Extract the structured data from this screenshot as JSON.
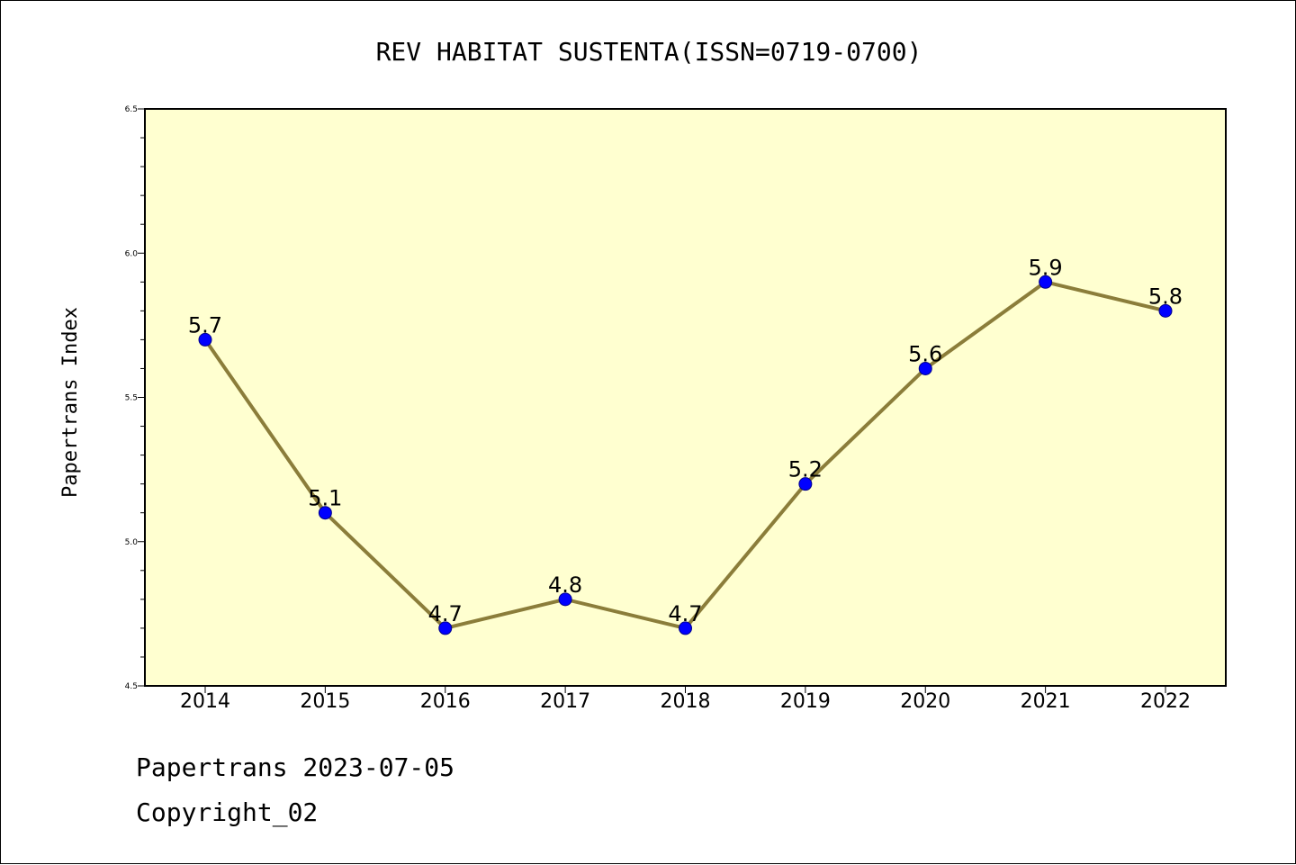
{
  "chart_data": {
    "type": "line",
    "title": "REV HABITAT SUSTENTA(ISSN=0719-0700)",
    "xlabel": "",
    "ylabel": "Papertrans Index",
    "categories": [
      "2014",
      "2015",
      "2016",
      "2017",
      "2018",
      "2019",
      "2020",
      "2021",
      "2022"
    ],
    "series": [
      {
        "values": [
          5.7,
          5.1,
          4.7,
          4.8,
          4.7,
          5.2,
          5.6,
          5.9,
          5.8
        ]
      }
    ],
    "data_labels": [
      "5.7",
      "5.1",
      "4.7",
      "4.8",
      "4.7",
      "5.2",
      "5.6",
      "5.9",
      "5.8"
    ],
    "ylim": [
      4.5,
      6.5
    ],
    "yticks": [
      "4.5",
      "5.0",
      "5.5",
      "6.0",
      "6.5"
    ],
    "grid": false,
    "colors": {
      "plot_background": "#ffffd0",
      "line": "#8b7d3a",
      "marker": "#0000ff"
    }
  },
  "footer": {
    "line1": "Papertrans 2023-07-05",
    "line2": "Copyright_02"
  }
}
